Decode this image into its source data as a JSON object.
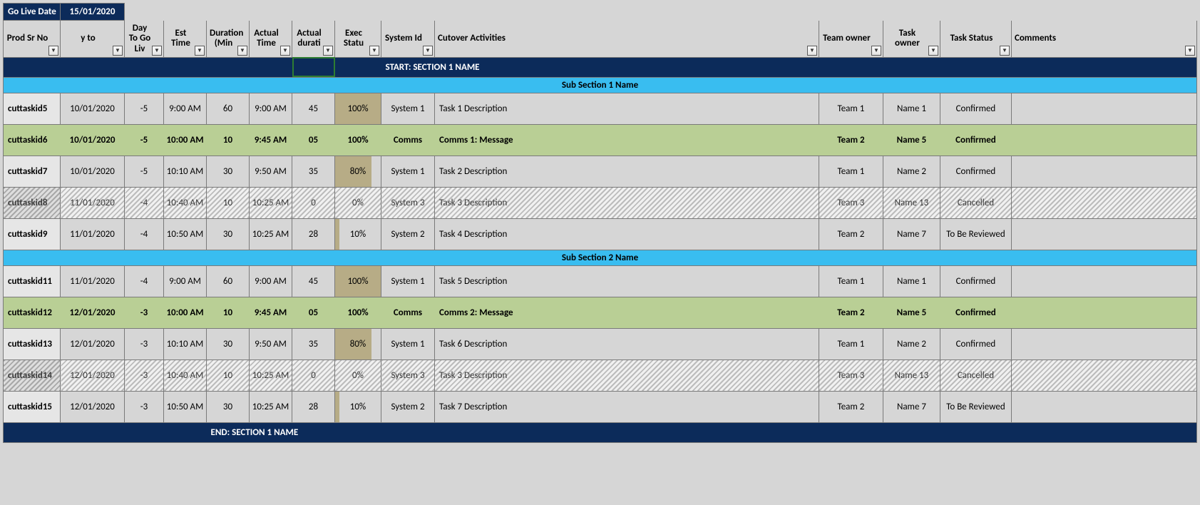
{
  "goLive": {
    "label": "Go Live Date",
    "value": "15/01/2020"
  },
  "headers": {
    "id": "Prod Sr No",
    "yto": "y to",
    "days": "Day To Go Liv",
    "est": "Est Time",
    "dur": "Duration (Min",
    "acttime": "Actual Time",
    "actdur": "Actual durati",
    "exec": "Exec Statu",
    "sys": "System Id",
    "act": "Cutover Activities",
    "team": "Team owner",
    "owner": "Task owner",
    "status": "Task Status",
    "comm": "Comments"
  },
  "sectionStart": "START: SECTION 1 NAME",
  "sectionEnd": "END: SECTION 1 NAME",
  "sub1": "Sub Section 1 Name",
  "sub2": "Sub Section 2 Name",
  "rows": [
    {
      "style": "normal",
      "id": "cuttaskid5",
      "date": "10/01/2020",
      "days": "-5",
      "est": "9:00 AM",
      "dur": "60",
      "acttime": "9:00 AM",
      "actdur": "45",
      "exec": "100%",
      "execPct": 100,
      "sys": "System 1",
      "act": "Task 1 Description",
      "team": "Team 1",
      "owner": "Name 1",
      "status": "Confirmed",
      "comm": ""
    },
    {
      "style": "green",
      "id": "cuttaskid6",
      "date": "10/01/2020",
      "days": "-5",
      "est": "10:00 AM",
      "dur": "10",
      "acttime": "9:45 AM",
      "actdur": "05",
      "exec": "100%",
      "execPct": 100,
      "sys": "Comms",
      "act": "Comms 1: Message",
      "team": "Team 2",
      "owner": "Name 5",
      "status": "Confirmed",
      "comm": ""
    },
    {
      "style": "normal",
      "id": "cuttaskid7",
      "date": "10/01/2020",
      "days": "-5",
      "est": "10:10 AM",
      "dur": "30",
      "acttime": "9:50 AM",
      "actdur": "35",
      "exec": "80%",
      "execPct": 80,
      "sys": "System 1",
      "act": "Task 2 Description",
      "team": "Team 1",
      "owner": "Name 2",
      "status": "Confirmed",
      "comm": ""
    },
    {
      "style": "cancel",
      "id": "cuttaskid8",
      "date": "11/01/2020",
      "days": "-4",
      "est": "10:40 AM",
      "dur": "10",
      "acttime": "10:25 AM",
      "actdur": "0",
      "exec": "0%",
      "execPct": 0,
      "sys": "System 3",
      "act": "Task 3 Description",
      "team": "Team 3",
      "owner": "Name 13",
      "status": "Cancelled",
      "comm": ""
    },
    {
      "style": "normal",
      "id": "cuttaskid9",
      "date": "11/01/2020",
      "days": "-4",
      "est": "10:50 AM",
      "dur": "30",
      "acttime": "10:25 AM",
      "actdur": "28",
      "exec": "10%",
      "execPct": 10,
      "sys": "System 2",
      "act": "Task 4 Description",
      "team": "Team 2",
      "owner": "Name 7",
      "status": "To Be Reviewed",
      "comm": ""
    },
    {
      "style": "normal",
      "id": "cuttaskid11",
      "date": "11/01/2020",
      "days": "-4",
      "est": "9:00 AM",
      "dur": "60",
      "acttime": "9:00 AM",
      "actdur": "45",
      "exec": "100%",
      "execPct": 100,
      "sys": "System 1",
      "act": "Task 5 Description",
      "team": "Team 1",
      "owner": "Name 1",
      "status": "Confirmed",
      "comm": ""
    },
    {
      "style": "green",
      "id": "cuttaskid12",
      "date": "12/01/2020",
      "days": "-3",
      "est": "10:00 AM",
      "dur": "10",
      "acttime": "9:45 AM",
      "actdur": "05",
      "exec": "100%",
      "execPct": 100,
      "sys": "Comms",
      "act": "Comms 2: Message",
      "team": "Team 2",
      "owner": "Name 5",
      "status": "Confirmed",
      "comm": ""
    },
    {
      "style": "normal",
      "id": "cuttaskid13",
      "date": "12/01/2020",
      "days": "-3",
      "est": "10:10 AM",
      "dur": "30",
      "acttime": "9:50 AM",
      "actdur": "35",
      "exec": "80%",
      "execPct": 80,
      "sys": "System 1",
      "act": "Task 6 Description",
      "team": "Team 1",
      "owner": "Name 2",
      "status": "Confirmed",
      "comm": ""
    },
    {
      "style": "cancel",
      "id": "cuttaskid14",
      "date": "12/01/2020",
      "days": "-3",
      "est": "10:40 AM",
      "dur": "10",
      "acttime": "10:25 AM",
      "actdur": "0",
      "exec": "0%",
      "execPct": 0,
      "sys": "System 3",
      "act": "Task 3 Description",
      "team": "Team 3",
      "owner": "Name 13",
      "status": "Cancelled",
      "comm": ""
    },
    {
      "style": "normal",
      "id": "cuttaskid15",
      "date": "12/01/2020",
      "days": "-3",
      "est": "10:50 AM",
      "dur": "30",
      "acttime": "10:25 AM",
      "actdur": "28",
      "exec": "10%",
      "execPct": 10,
      "sys": "System 2",
      "act": "Task 7 Description",
      "team": "Team 2",
      "owner": "Name 7",
      "status": "To Be Reviewed",
      "comm": ""
    }
  ],
  "colors": {
    "darkNavy": "#0c2b5a",
    "subBlue": "#39bdf0",
    "greenRow": "#b9cf95",
    "execBar": "#b7ac86",
    "headerBg": "#d6d6d6"
  }
}
